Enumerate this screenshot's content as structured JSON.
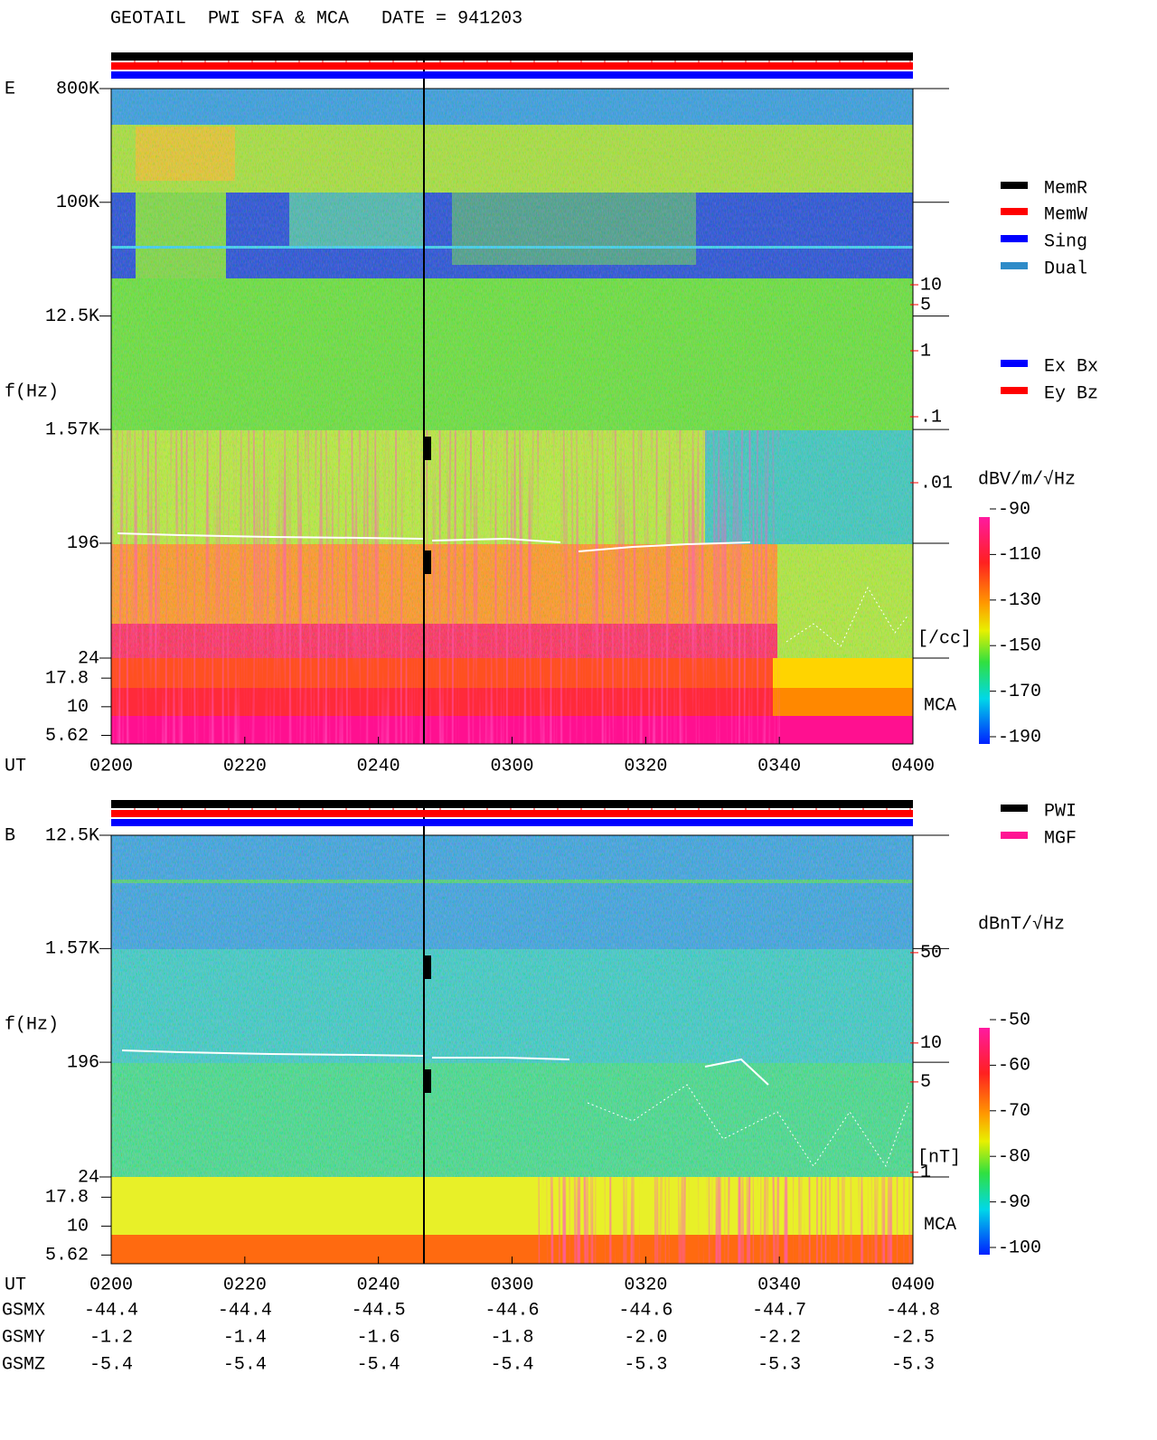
{
  "title": "GEOTAIL  PWI SFA & MCA   DATE = 941203",
  "chart_data": [
    {
      "type": "spectrogram",
      "panel_label": "E",
      "ylabel": "f(Hz)",
      "xlabel": "UT",
      "log_y": true,
      "ylim": [
        24,
        800000
      ],
      "yticks": [
        {
          "value": 800000,
          "label": "800K"
        },
        {
          "value": 100000,
          "label": "100K"
        },
        {
          "value": 12500,
          "label": "12.5K"
        },
        {
          "value": 1570,
          "label": "1.57K"
        },
        196,
        24
      ],
      "xlim": [
        120,
        240
      ],
      "xticks": [
        {
          "value": 120,
          "label": "0200"
        },
        {
          "value": 140,
          "label": "0220"
        },
        {
          "value": 160,
          "label": "0240"
        },
        {
          "value": 180,
          "label": "0300"
        },
        {
          "value": 200,
          "label": "0320"
        },
        {
          "value": 220,
          "label": "0340"
        },
        {
          "value": 240,
          "label": "0400"
        }
      ],
      "mca_label": "MCA",
      "mca_ticks": [
        17.8,
        10,
        5.62
      ],
      "y2lim": [
        2.2e-05,
        9400
      ],
      "y2log": true,
      "y2color": "#ff0000",
      "y2ticks": [
        10,
        5,
        1,
        {
          "value": 0.1,
          "label": ".1"
        },
        {
          "value": 0.01,
          "label": ".01"
        }
      ],
      "y2label": "[/cc]",
      "colorbar_label": "dBV/m/√Hz",
      "clim": [
        -190,
        -90
      ],
      "cticks": [
        -90,
        -110,
        -130,
        -150,
        -170,
        -190
      ],
      "legend": [
        {
          "name": "MemR",
          "color": "#000000"
        },
        {
          "name": "MemW",
          "color": "#ff0000"
        },
        {
          "name": "Sing",
          "color": "#0000ff"
        },
        {
          "name": "Dual",
          "color": "#2e8bc8"
        },
        {
          "name": "Ex Bx",
          "color": "#0000ff"
        },
        {
          "name": "Ey Bz",
          "color": "#ff0000"
        }
      ]
    },
    {
      "type": "spectrogram",
      "panel_label": "B",
      "ylabel": "f(Hz)",
      "xlabel": "UT",
      "log_y": true,
      "ylim": [
        24,
        12500
      ],
      "yticks": [
        {
          "value": 12500,
          "label": "12.5K"
        },
        {
          "value": 1570,
          "label": "1.57K"
        },
        196,
        24
      ],
      "xlim": [
        120,
        240
      ],
      "xticks": [
        {
          "value": 120,
          "label": "0200"
        },
        {
          "value": 140,
          "label": "0220"
        },
        {
          "value": 160,
          "label": "0240"
        },
        {
          "value": 180,
          "label": "0300"
        },
        {
          "value": 200,
          "label": "0320"
        },
        {
          "value": 220,
          "label": "0340"
        },
        {
          "value": 240,
          "label": "0400"
        }
      ],
      "mca_label": "MCA",
      "mca_ticks": [
        17.8,
        10,
        5.62
      ],
      "y2lim": [
        0.92,
        405
      ],
      "y2log": true,
      "y2color": "#ff0000",
      "y2ticks": [
        50,
        10,
        5,
        1
      ],
      "y2label": "[nT]",
      "colorbar_label": "dBnT/√Hz",
      "clim": [
        -100,
        -50
      ],
      "cticks": [
        -50,
        -60,
        -70,
        -80,
        -90,
        -100
      ],
      "legend": [
        {
          "name": "PWI",
          "color": "#000000"
        },
        {
          "name": "MGF",
          "color": "#ff1493"
        }
      ]
    }
  ],
  "orbit": {
    "rows": [
      {
        "name": "GSMX",
        "values": [
          "-44.4",
          "-44.4",
          "-44.5",
          "-44.6",
          "-44.6",
          "-44.7",
          "-44.8"
        ]
      },
      {
        "name": "GSMY",
        "values": [
          "-1.2",
          "-1.4",
          "-1.6",
          "-1.8",
          "-2.0",
          "-2.2",
          "-2.5"
        ]
      },
      {
        "name": "GSMZ",
        "values": [
          "-5.4",
          "-5.4",
          "-5.4",
          "-5.4",
          "-5.3",
          "-5.3",
          "-5.3"
        ]
      }
    ]
  }
}
